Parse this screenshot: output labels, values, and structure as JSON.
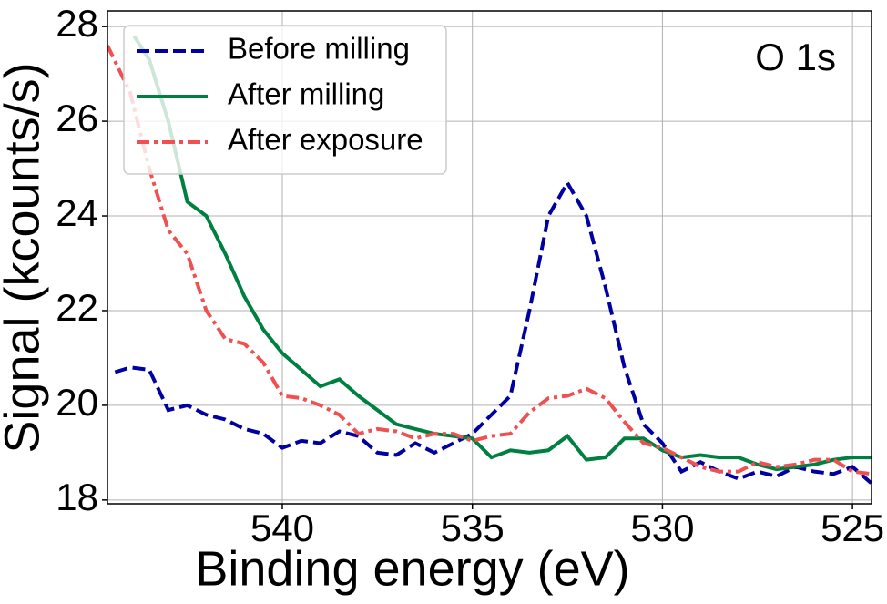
{
  "chart_data": {
    "type": "line",
    "xlabel": "Binding energy (eV)",
    "ylabel": "Signal (kcounts/s)",
    "annotation": "O 1s",
    "xlim": [
      544.6,
      524.5
    ],
    "ylim": [
      17.92,
      28.33
    ],
    "xticks": [
      540,
      535,
      530,
      525
    ],
    "yticks": [
      18,
      20,
      22,
      24,
      26,
      28
    ],
    "grid": true,
    "legend": "upper left",
    "series": [
      {
        "name": "Before milling",
        "color": "#0000a0",
        "dash": "dashed",
        "x": [
          544.4,
          544,
          543.5,
          543,
          542.5,
          542,
          541.5,
          541,
          540.5,
          540,
          539.5,
          539,
          538.5,
          538,
          537.5,
          537,
          536.5,
          536,
          535.5,
          535,
          534.5,
          534,
          533.5,
          533,
          532.5,
          532,
          531.5,
          531,
          530.5,
          530,
          529.5,
          529,
          528.5,
          528,
          527.5,
          527,
          526.5,
          526,
          525.5,
          525,
          524.5
        ],
        "values": [
          20.7,
          20.8,
          20.75,
          19.9,
          20.0,
          19.8,
          19.7,
          19.5,
          19.4,
          19.1,
          19.25,
          19.2,
          19.45,
          19.35,
          19.0,
          18.95,
          19.2,
          19.0,
          19.2,
          19.4,
          19.8,
          20.2,
          22.0,
          24.0,
          24.7,
          24.0,
          22.5,
          20.8,
          19.6,
          19.2,
          18.6,
          18.8,
          18.6,
          18.45,
          18.6,
          18.5,
          18.7,
          18.6,
          18.55,
          18.7,
          18.35
        ]
      },
      {
        "name": "After milling",
        "color": "#008040",
        "dash": "solid",
        "x": [
          543.9,
          543.5,
          543,
          542.5,
          542,
          541.5,
          541,
          540.5,
          540,
          539.5,
          539,
          538.5,
          538,
          537.5,
          537,
          536.5,
          536,
          535.5,
          535,
          534.5,
          534,
          533.5,
          533,
          532.5,
          532,
          531.5,
          531,
          530.5,
          530,
          529.5,
          529,
          528.5,
          528,
          527.5,
          527,
          526.5,
          526,
          525.5,
          525,
          524.5
        ],
        "values": [
          27.8,
          27.3,
          26.0,
          24.3,
          24.0,
          23.2,
          22.3,
          21.6,
          21.1,
          20.75,
          20.4,
          20.55,
          20.2,
          19.9,
          19.6,
          19.5,
          19.4,
          19.35,
          19.3,
          18.9,
          19.05,
          19.0,
          19.05,
          19.35,
          18.85,
          18.9,
          19.3,
          19.3,
          19.05,
          18.9,
          18.95,
          18.9,
          18.9,
          18.75,
          18.65,
          18.7,
          18.75,
          18.85,
          18.9,
          18.9
        ]
      },
      {
        "name": "After exposure",
        "color": "#f05050",
        "dash": "dashdot",
        "x": [
          544.6,
          544,
          543.5,
          543,
          542.5,
          542,
          541.5,
          541,
          540.5,
          540,
          539.5,
          539,
          538.5,
          538,
          537.5,
          537,
          536.5,
          536,
          535.5,
          535,
          534.5,
          534,
          533.5,
          533,
          532.5,
          532,
          531.5,
          531,
          530.5,
          530,
          529.5,
          529,
          528.5,
          528,
          527.5,
          527,
          526.5,
          526,
          525.5,
          525,
          524.5
        ],
        "values": [
          27.6,
          26.6,
          25.0,
          23.7,
          23.2,
          22.0,
          21.4,
          21.3,
          20.9,
          20.2,
          20.15,
          20.0,
          19.8,
          19.4,
          19.5,
          19.45,
          19.3,
          19.4,
          19.4,
          19.25,
          19.35,
          19.4,
          19.85,
          20.15,
          20.2,
          20.35,
          20.15,
          19.65,
          19.2,
          19.1,
          18.9,
          18.7,
          18.6,
          18.6,
          18.8,
          18.7,
          18.75,
          18.85,
          18.85,
          18.6,
          18.55
        ]
      }
    ]
  }
}
